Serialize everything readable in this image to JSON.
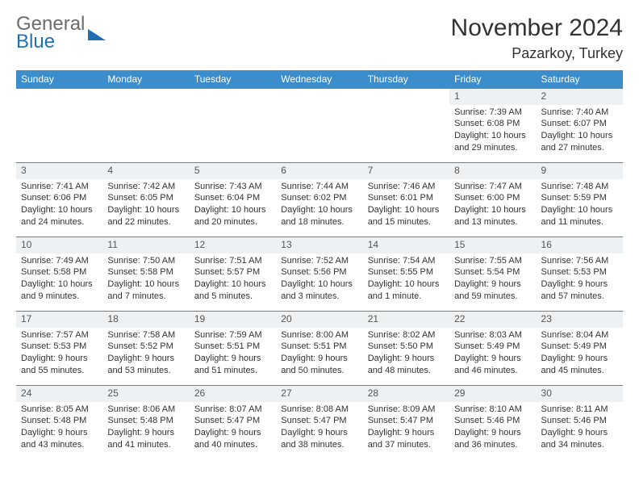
{
  "logo": {
    "line1": "General",
    "line2": "Blue"
  },
  "title": "November 2024",
  "location": "Pazarkoy, Turkey",
  "colors": {
    "header_bg": "#3c8dcc",
    "header_text": "#ffffff",
    "daynum_bg": "#eef1f3",
    "border": "#3c8dcc",
    "body_text": "#333333",
    "logo_gray": "#6b6b6b",
    "logo_blue": "#1f6fb2"
  },
  "weekdays": [
    "Sunday",
    "Monday",
    "Tuesday",
    "Wednesday",
    "Thursday",
    "Friday",
    "Saturday"
  ],
  "weeks": [
    [
      {
        "n": "",
        "sr": "",
        "ss": "",
        "dl": ""
      },
      {
        "n": "",
        "sr": "",
        "ss": "",
        "dl": ""
      },
      {
        "n": "",
        "sr": "",
        "ss": "",
        "dl": ""
      },
      {
        "n": "",
        "sr": "",
        "ss": "",
        "dl": ""
      },
      {
        "n": "",
        "sr": "",
        "ss": "",
        "dl": ""
      },
      {
        "n": "1",
        "sr": "Sunrise: 7:39 AM",
        "ss": "Sunset: 6:08 PM",
        "dl": "Daylight: 10 hours and 29 minutes."
      },
      {
        "n": "2",
        "sr": "Sunrise: 7:40 AM",
        "ss": "Sunset: 6:07 PM",
        "dl": "Daylight: 10 hours and 27 minutes."
      }
    ],
    [
      {
        "n": "3",
        "sr": "Sunrise: 7:41 AM",
        "ss": "Sunset: 6:06 PM",
        "dl": "Daylight: 10 hours and 24 minutes."
      },
      {
        "n": "4",
        "sr": "Sunrise: 7:42 AM",
        "ss": "Sunset: 6:05 PM",
        "dl": "Daylight: 10 hours and 22 minutes."
      },
      {
        "n": "5",
        "sr": "Sunrise: 7:43 AM",
        "ss": "Sunset: 6:04 PM",
        "dl": "Daylight: 10 hours and 20 minutes."
      },
      {
        "n": "6",
        "sr": "Sunrise: 7:44 AM",
        "ss": "Sunset: 6:02 PM",
        "dl": "Daylight: 10 hours and 18 minutes."
      },
      {
        "n": "7",
        "sr": "Sunrise: 7:46 AM",
        "ss": "Sunset: 6:01 PM",
        "dl": "Daylight: 10 hours and 15 minutes."
      },
      {
        "n": "8",
        "sr": "Sunrise: 7:47 AM",
        "ss": "Sunset: 6:00 PM",
        "dl": "Daylight: 10 hours and 13 minutes."
      },
      {
        "n": "9",
        "sr": "Sunrise: 7:48 AM",
        "ss": "Sunset: 5:59 PM",
        "dl": "Daylight: 10 hours and 11 minutes."
      }
    ],
    [
      {
        "n": "10",
        "sr": "Sunrise: 7:49 AM",
        "ss": "Sunset: 5:58 PM",
        "dl": "Daylight: 10 hours and 9 minutes."
      },
      {
        "n": "11",
        "sr": "Sunrise: 7:50 AM",
        "ss": "Sunset: 5:58 PM",
        "dl": "Daylight: 10 hours and 7 minutes."
      },
      {
        "n": "12",
        "sr": "Sunrise: 7:51 AM",
        "ss": "Sunset: 5:57 PM",
        "dl": "Daylight: 10 hours and 5 minutes."
      },
      {
        "n": "13",
        "sr": "Sunrise: 7:52 AM",
        "ss": "Sunset: 5:56 PM",
        "dl": "Daylight: 10 hours and 3 minutes."
      },
      {
        "n": "14",
        "sr": "Sunrise: 7:54 AM",
        "ss": "Sunset: 5:55 PM",
        "dl": "Daylight: 10 hours and 1 minute."
      },
      {
        "n": "15",
        "sr": "Sunrise: 7:55 AM",
        "ss": "Sunset: 5:54 PM",
        "dl": "Daylight: 9 hours and 59 minutes."
      },
      {
        "n": "16",
        "sr": "Sunrise: 7:56 AM",
        "ss": "Sunset: 5:53 PM",
        "dl": "Daylight: 9 hours and 57 minutes."
      }
    ],
    [
      {
        "n": "17",
        "sr": "Sunrise: 7:57 AM",
        "ss": "Sunset: 5:53 PM",
        "dl": "Daylight: 9 hours and 55 minutes."
      },
      {
        "n": "18",
        "sr": "Sunrise: 7:58 AM",
        "ss": "Sunset: 5:52 PM",
        "dl": "Daylight: 9 hours and 53 minutes."
      },
      {
        "n": "19",
        "sr": "Sunrise: 7:59 AM",
        "ss": "Sunset: 5:51 PM",
        "dl": "Daylight: 9 hours and 51 minutes."
      },
      {
        "n": "20",
        "sr": "Sunrise: 8:00 AM",
        "ss": "Sunset: 5:51 PM",
        "dl": "Daylight: 9 hours and 50 minutes."
      },
      {
        "n": "21",
        "sr": "Sunrise: 8:02 AM",
        "ss": "Sunset: 5:50 PM",
        "dl": "Daylight: 9 hours and 48 minutes."
      },
      {
        "n": "22",
        "sr": "Sunrise: 8:03 AM",
        "ss": "Sunset: 5:49 PM",
        "dl": "Daylight: 9 hours and 46 minutes."
      },
      {
        "n": "23",
        "sr": "Sunrise: 8:04 AM",
        "ss": "Sunset: 5:49 PM",
        "dl": "Daylight: 9 hours and 45 minutes."
      }
    ],
    [
      {
        "n": "24",
        "sr": "Sunrise: 8:05 AM",
        "ss": "Sunset: 5:48 PM",
        "dl": "Daylight: 9 hours and 43 minutes."
      },
      {
        "n": "25",
        "sr": "Sunrise: 8:06 AM",
        "ss": "Sunset: 5:48 PM",
        "dl": "Daylight: 9 hours and 41 minutes."
      },
      {
        "n": "26",
        "sr": "Sunrise: 8:07 AM",
        "ss": "Sunset: 5:47 PM",
        "dl": "Daylight: 9 hours and 40 minutes."
      },
      {
        "n": "27",
        "sr": "Sunrise: 8:08 AM",
        "ss": "Sunset: 5:47 PM",
        "dl": "Daylight: 9 hours and 38 minutes."
      },
      {
        "n": "28",
        "sr": "Sunrise: 8:09 AM",
        "ss": "Sunset: 5:47 PM",
        "dl": "Daylight: 9 hours and 37 minutes."
      },
      {
        "n": "29",
        "sr": "Sunrise: 8:10 AM",
        "ss": "Sunset: 5:46 PM",
        "dl": "Daylight: 9 hours and 36 minutes."
      },
      {
        "n": "30",
        "sr": "Sunrise: 8:11 AM",
        "ss": "Sunset: 5:46 PM",
        "dl": "Daylight: 9 hours and 34 minutes."
      }
    ]
  ]
}
